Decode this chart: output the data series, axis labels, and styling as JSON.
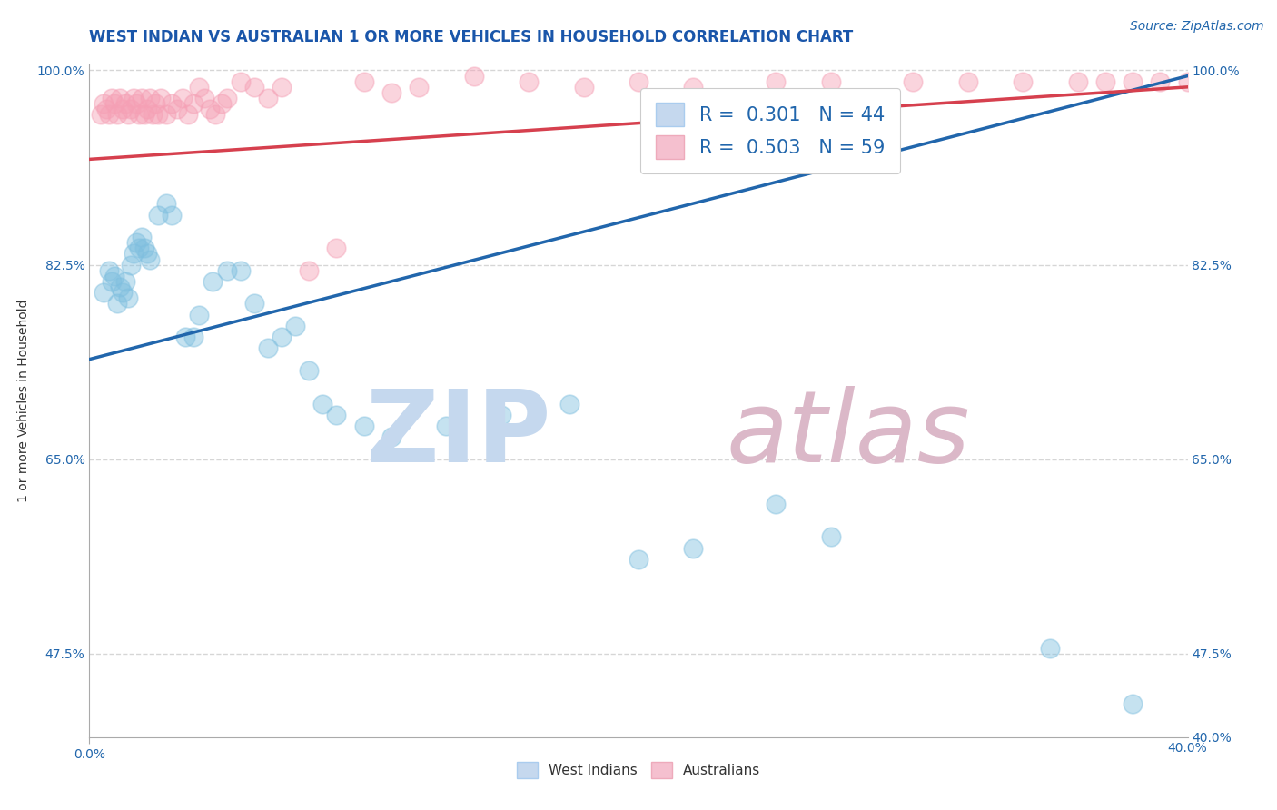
{
  "title": "WEST INDIAN VS AUSTRALIAN 1 OR MORE VEHICLES IN HOUSEHOLD CORRELATION CHART",
  "source": "Source: ZipAtlas.com",
  "ylabel": "1 or more Vehicles in Household",
  "legend_blue_R": "0.301",
  "legend_blue_N": "44",
  "legend_pink_R": "0.503",
  "legend_pink_N": "59",
  "legend_blue_label": "West Indians",
  "legend_pink_label": "Australians",
  "xlim": [
    0.0,
    0.4
  ],
  "ylim": [
    0.4,
    1.005
  ],
  "ytick_vals": [
    1.0,
    0.825,
    0.65,
    0.475
  ],
  "ytick_labels_left": [
    "100.0%",
    "82.5%",
    "65.0%",
    "47.5%"
  ],
  "ytick_vals_right": [
    1.0,
    0.825,
    0.65,
    0.475,
    0.4
  ],
  "ytick_labels_right": [
    "100.0%",
    "82.5%",
    "65.0%",
    "47.5%",
    "40.0%"
  ],
  "xtick_left_val": 0.0,
  "xtick_left_label": "0.0%",
  "xtick_right_val": 0.4,
  "xtick_right_label": "40.0%",
  "blue_scatter_x": [
    0.005,
    0.007,
    0.008,
    0.009,
    0.01,
    0.011,
    0.012,
    0.013,
    0.014,
    0.015,
    0.016,
    0.017,
    0.018,
    0.019,
    0.02,
    0.021,
    0.022,
    0.025,
    0.028,
    0.03,
    0.035,
    0.038,
    0.04,
    0.045,
    0.05,
    0.055,
    0.06,
    0.065,
    0.07,
    0.075,
    0.08,
    0.085,
    0.09,
    0.1,
    0.11,
    0.13,
    0.15,
    0.175,
    0.2,
    0.22,
    0.25,
    0.27,
    0.35,
    0.38
  ],
  "blue_scatter_y": [
    0.8,
    0.82,
    0.81,
    0.815,
    0.79,
    0.805,
    0.8,
    0.81,
    0.795,
    0.825,
    0.835,
    0.845,
    0.84,
    0.85,
    0.84,
    0.835,
    0.83,
    0.87,
    0.88,
    0.87,
    0.76,
    0.76,
    0.78,
    0.81,
    0.82,
    0.82,
    0.79,
    0.75,
    0.76,
    0.77,
    0.73,
    0.7,
    0.69,
    0.68,
    0.67,
    0.68,
    0.69,
    0.7,
    0.56,
    0.57,
    0.61,
    0.58,
    0.48,
    0.43
  ],
  "pink_scatter_x": [
    0.004,
    0.005,
    0.006,
    0.007,
    0.008,
    0.009,
    0.01,
    0.011,
    0.012,
    0.013,
    0.014,
    0.015,
    0.016,
    0.017,
    0.018,
    0.019,
    0.02,
    0.021,
    0.022,
    0.023,
    0.024,
    0.025,
    0.026,
    0.028,
    0.03,
    0.032,
    0.034,
    0.036,
    0.038,
    0.04,
    0.042,
    0.044,
    0.046,
    0.048,
    0.05,
    0.055,
    0.06,
    0.065,
    0.07,
    0.08,
    0.09,
    0.1,
    0.11,
    0.12,
    0.14,
    0.16,
    0.18,
    0.2,
    0.22,
    0.25,
    0.27,
    0.3,
    0.32,
    0.34,
    0.36,
    0.37,
    0.38,
    0.39,
    0.4
  ],
  "pink_scatter_y": [
    0.96,
    0.97,
    0.965,
    0.96,
    0.975,
    0.97,
    0.96,
    0.975,
    0.965,
    0.97,
    0.96,
    0.965,
    0.975,
    0.97,
    0.96,
    0.975,
    0.96,
    0.965,
    0.975,
    0.96,
    0.97,
    0.96,
    0.975,
    0.96,
    0.97,
    0.965,
    0.975,
    0.96,
    0.97,
    0.985,
    0.975,
    0.965,
    0.96,
    0.97,
    0.975,
    0.99,
    0.985,
    0.975,
    0.985,
    0.82,
    0.84,
    0.99,
    0.98,
    0.985,
    0.995,
    0.99,
    0.985,
    0.99,
    0.985,
    0.99,
    0.99,
    0.99,
    0.99,
    0.99,
    0.99,
    0.99,
    0.99,
    0.99,
    0.99
  ],
  "blue_line_x": [
    0.0,
    0.4
  ],
  "blue_line_y": [
    0.74,
    0.995
  ],
  "pink_line_x": [
    0.0,
    0.4
  ],
  "pink_line_y": [
    0.92,
    0.985
  ],
  "blue_color": "#7fbfdf",
  "pink_color": "#f5a0b5",
  "blue_line_color": "#2166ac",
  "pink_line_color": "#d6404e",
  "title_color": "#1a56aa",
  "source_color": "#2166ac",
  "grid_color": "#cccccc",
  "background_color": "#ffffff",
  "title_fontsize": 12,
  "axis_label_fontsize": 10,
  "tick_fontsize": 10,
  "legend_fontsize": 15,
  "source_fontsize": 10
}
